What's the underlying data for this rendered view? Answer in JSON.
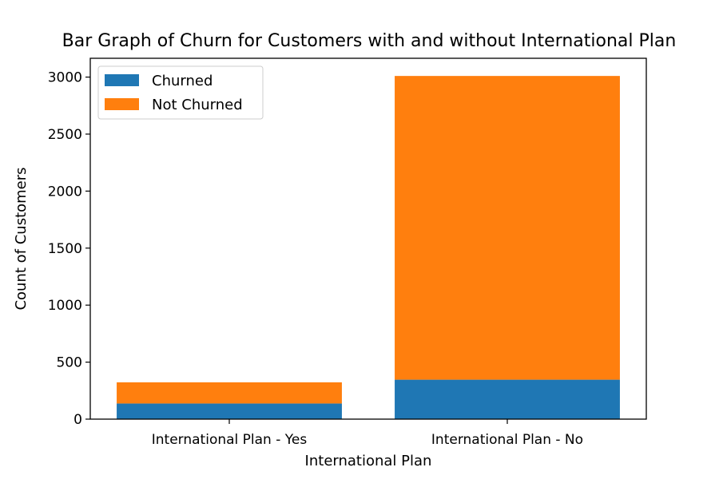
{
  "chart_data": {
    "type": "bar",
    "stacked": true,
    "title": "Bar Graph of Churn for Customers with and without International Plan",
    "xlabel": "International Plan",
    "ylabel": "Count of Customers",
    "categories": [
      "International Plan - Yes",
      "International Plan - No"
    ],
    "series": [
      {
        "name": "Churned",
        "values": [
          137,
          346
        ],
        "color": "#1f77b4"
      },
      {
        "name": "Not Churned",
        "values": [
          186,
          2664
        ],
        "color": "#ff7f0e"
      }
    ],
    "ylim": [
      0,
      3165
    ],
    "yticks": [
      0,
      500,
      1000,
      1500,
      2000,
      2500,
      3000
    ],
    "grid": false,
    "legend_position": "top-left"
  }
}
